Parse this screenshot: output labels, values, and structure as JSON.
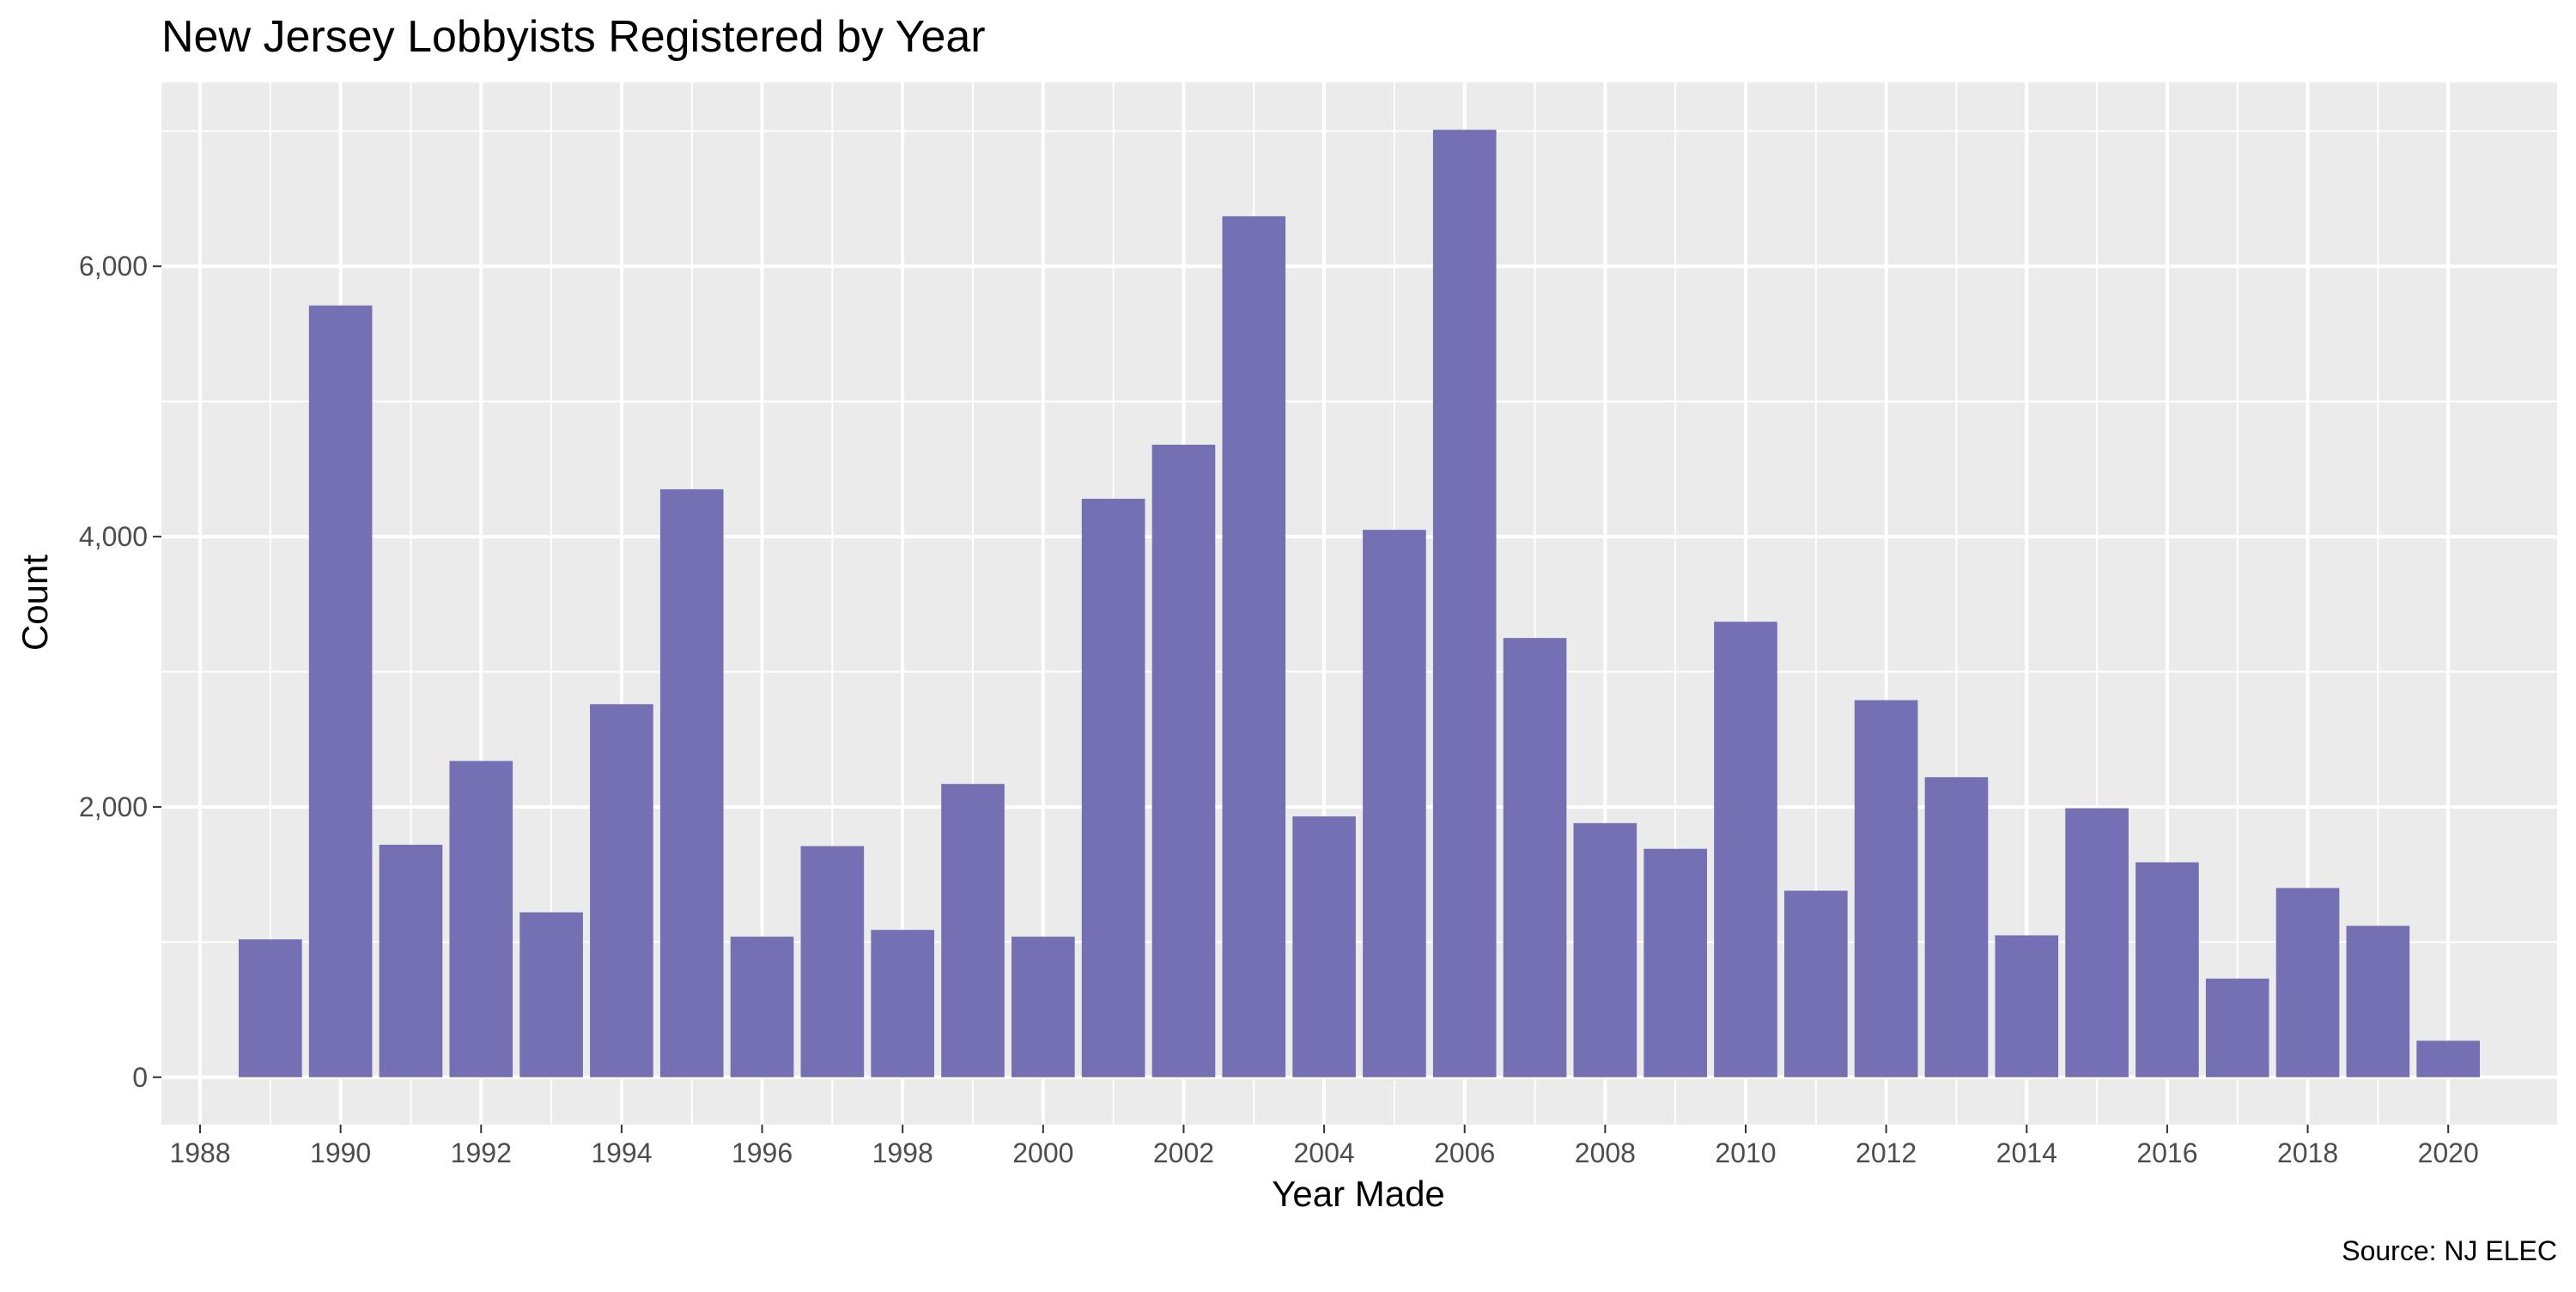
{
  "chart_data": {
    "type": "bar",
    "title": "New Jersey Lobbyists Registered by Year",
    "xlabel": "Year Made",
    "ylabel": "Count",
    "caption": "Source: NJ ELEC",
    "bar_color": "#7570b3",
    "panel_color": "#ebebeb",
    "grid_color": "#ffffff",
    "categories": [
      1989,
      1990,
      1991,
      1992,
      1993,
      1994,
      1995,
      1996,
      1997,
      1998,
      1999,
      2000,
      2001,
      2002,
      2003,
      2004,
      2005,
      2006,
      2007,
      2008,
      2009,
      2010,
      2011,
      2012,
      2013,
      2014,
      2015,
      2016,
      2017,
      2018,
      2019,
      2020
    ],
    "values": [
      1020,
      5710,
      1720,
      2340,
      1220,
      2760,
      4350,
      1040,
      1710,
      1090,
      2170,
      1040,
      4280,
      4680,
      6370,
      1930,
      4050,
      7010,
      3250,
      1880,
      1690,
      3370,
      1380,
      2790,
      2220,
      1050,
      1990,
      1590,
      730,
      1400,
      1120,
      270
    ],
    "xlim": [
      1987.45,
      2021.55
    ],
    "ylim": [
      -350.5,
      7360.5
    ],
    "x_ticks": [
      1988,
      1990,
      1992,
      1994,
      1996,
      1998,
      2000,
      2002,
      2004,
      2006,
      2008,
      2010,
      2012,
      2014,
      2016,
      2018,
      2020
    ],
    "x_tick_labels": [
      "1988",
      "1990",
      "1992",
      "1994",
      "1996",
      "1998",
      "2000",
      "2002",
      "2004",
      "2006",
      "2008",
      "2010",
      "2012",
      "2014",
      "2016",
      "2018",
      "2020"
    ],
    "y_ticks": [
      0,
      2000,
      4000,
      6000
    ],
    "y_tick_labels": [
      "0",
      "2,000",
      "4,000",
      "6,000"
    ],
    "grid": true
  }
}
